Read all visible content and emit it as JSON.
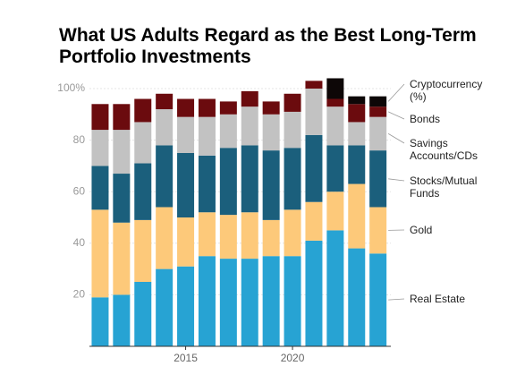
{
  "chart_data": {
    "type": "stacked_bar",
    "title": "What US Adults Regard as the Best Long-Term Portfolio Investments",
    "x": [
      2011,
      2012,
      2013,
      2014,
      2015,
      2016,
      2017,
      2018,
      2019,
      2020,
      2021,
      2022,
      2023,
      2024
    ],
    "xticks": [
      2015,
      2020
    ],
    "xlim": [
      2010.5,
      2024.6
    ],
    "ylim": [
      0,
      100
    ],
    "yticks": [
      20,
      40,
      60,
      80,
      {
        "value": 100,
        "label": "100%"
      }
    ],
    "grid": true,
    "series": [
      {
        "name": "Real Estate",
        "color": "#27a3d3",
        "values": [
          19,
          20,
          25,
          30,
          31,
          35,
          34,
          34,
          35,
          35,
          41,
          45,
          38,
          36
        ]
      },
      {
        "name": "Gold",
        "color": "#fdc97a",
        "values": [
          34,
          28,
          24,
          24,
          19,
          17,
          17,
          18,
          14,
          18,
          15,
          15,
          25,
          18
        ]
      },
      {
        "name": "Stocks/Mutual Funds",
        "color": "#1b5f7c",
        "values": [
          17,
          19,
          22,
          24,
          25,
          22,
          26,
          26,
          27,
          24,
          26,
          18,
          15,
          22
        ]
      },
      {
        "name": "Savings Accounts/CDs",
        "color": "#c2c2c2",
        "values": [
          14,
          17,
          16,
          14,
          14,
          15,
          13,
          15,
          14,
          14,
          18,
          15,
          9,
          13
        ]
      },
      {
        "name": "Bonds",
        "color": "#6b0b0e",
        "values": [
          10,
          10,
          9,
          6,
          7,
          7,
          5,
          6,
          5,
          7,
          3,
          3,
          7,
          4
        ]
      },
      {
        "name": "Cryptocurrency (%)",
        "color": "#0d0707",
        "values": [
          0,
          0,
          0,
          0,
          0,
          0,
          0,
          0,
          0,
          0,
          0,
          8,
          3,
          4
        ]
      }
    ]
  }
}
